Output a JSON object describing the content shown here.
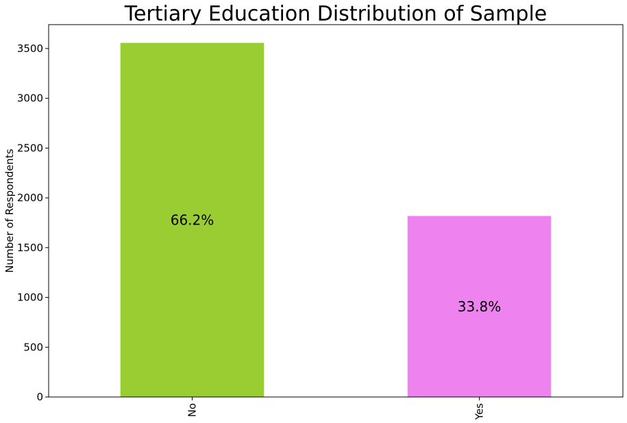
{
  "chart_data": {
    "type": "bar",
    "title": "Tertiary Education Distribution of Sample",
    "xlabel": "",
    "ylabel": "Number of Respondents",
    "categories": [
      "No",
      "Yes"
    ],
    "values": [
      3557,
      1818
    ],
    "bar_labels": [
      "66.2%",
      "33.8%"
    ],
    "colors": [
      "#9acd32",
      "#ee82ee"
    ],
    "ylim": [
      0,
      3740
    ],
    "yticks": [
      0,
      500,
      1000,
      1500,
      2000,
      2500,
      3000,
      3500
    ],
    "ytick_labels": [
      "0",
      "500",
      "1000",
      "1500",
      "2000",
      "2500",
      "3000",
      "3500"
    ],
    "grid": false,
    "legend": "none"
  }
}
